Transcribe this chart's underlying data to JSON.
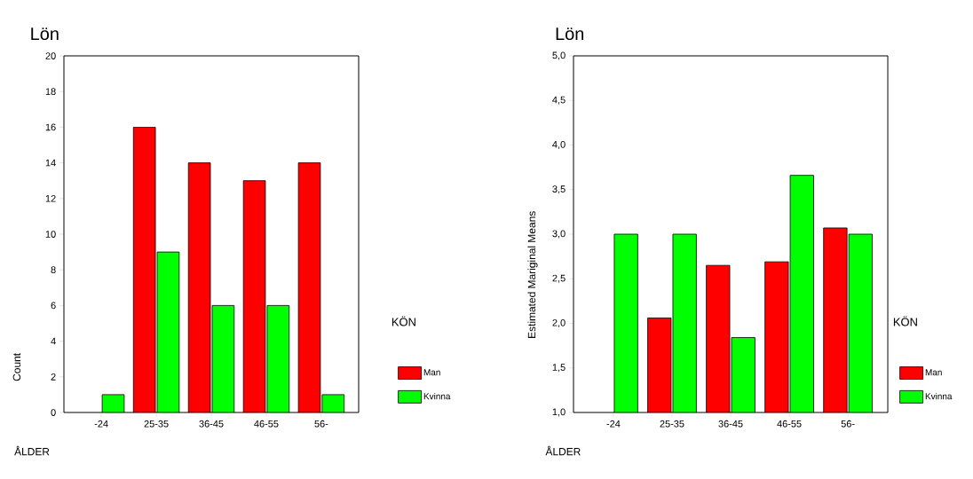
{
  "chart_data": [
    {
      "type": "bar",
      "title": "Lön",
      "xlabel": "ÅLDER",
      "ylabel": "Count",
      "legend_title": "KÖN",
      "legend": "right",
      "categories": [
        "-24",
        "25-35",
        "36-45",
        "46-55",
        "56-"
      ],
      "series": [
        {
          "name": "Man",
          "color": "#ff0000",
          "values": [
            null,
            16,
            14,
            13,
            14
          ]
        },
        {
          "name": "Kvinna",
          "color": "#00ff00",
          "values": [
            1,
            9,
            6,
            6,
            1
          ]
        }
      ],
      "ylim": [
        0,
        20
      ],
      "yticks": [
        0,
        2,
        4,
        6,
        8,
        10,
        12,
        14,
        16,
        18,
        20
      ]
    },
    {
      "type": "bar",
      "title": "Lön",
      "xlabel": "ÅLDER",
      "ylabel": "Estimated Mariginal Means",
      "legend_title": "KÖN",
      "legend": "right",
      "categories": [
        "-24",
        "25-35",
        "36-45",
        "46-55",
        "56-"
      ],
      "series": [
        {
          "name": "Man",
          "color": "#ff0000",
          "values": [
            null,
            2.06,
            2.65,
            2.69,
            3.07
          ]
        },
        {
          "name": "Kvinna",
          "color": "#00ff00",
          "values": [
            3.0,
            3.0,
            1.84,
            3.66,
            3.0
          ]
        }
      ],
      "ylim": [
        1,
        5
      ],
      "yticks": [
        {
          "value": 1,
          "label": "1,0"
        },
        {
          "value": 1.5,
          "label": "1,5"
        },
        {
          "value": 2,
          "label": "2,0"
        },
        {
          "value": 2.5,
          "label": "2,5"
        },
        {
          "value": 3,
          "label": "3,0"
        },
        {
          "value": 3.5,
          "label": "3,5"
        },
        {
          "value": 4,
          "label": "4,0"
        },
        {
          "value": 4.5,
          "label": "4,5"
        },
        {
          "value": 5,
          "label": "5,0"
        }
      ]
    }
  ]
}
